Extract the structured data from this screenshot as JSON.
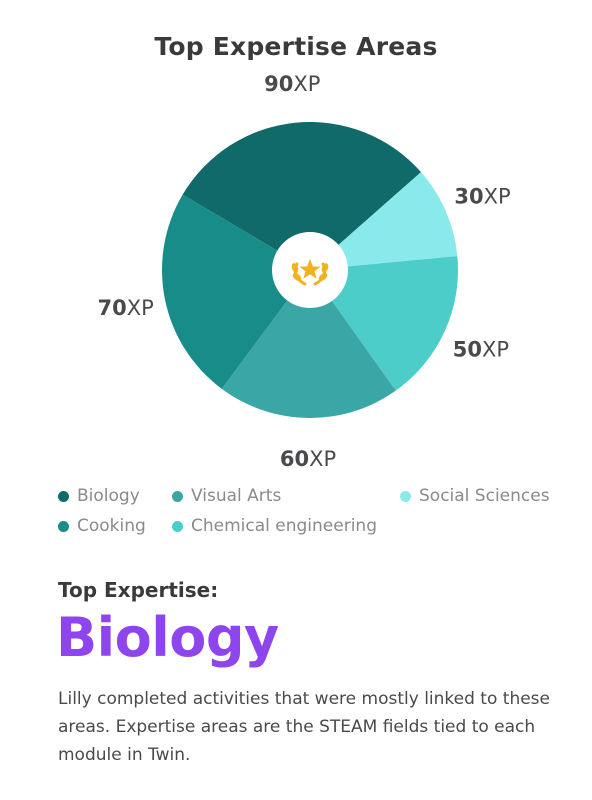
{
  "chart_data": {
    "type": "pie",
    "title": "Top Expertise Areas",
    "unit": "XP",
    "slices": [
      {
        "label": "Biology",
        "value": 90,
        "color": "#0f6a69"
      },
      {
        "label": "Social Sciences",
        "value": 30,
        "color": "#8ae9ea"
      },
      {
        "label": "Chemical engineering",
        "value": 50,
        "color": "#4ccdca"
      },
      {
        "label": "Visual Arts",
        "value": 60,
        "color": "#3aa6a6"
      },
      {
        "label": "Cooking",
        "value": 70,
        "color": "#188c88"
      }
    ],
    "legend": [
      {
        "label": "Biology",
        "color": "#0f6a69"
      },
      {
        "label": "Visual Arts",
        "color": "#3aa6a6"
      },
      {
        "label": "Social Sciences",
        "color": "#8ae9ea"
      },
      {
        "label": "Cooking",
        "color": "#188c88"
      },
      {
        "label": "Chemical engineering",
        "color": "#4ccdca"
      }
    ],
    "center_icon": "laurel-star-icon",
    "center_icon_color": "#f0b21f"
  },
  "summary": {
    "heading": "Top Expertise:",
    "value": "Biology",
    "description": "Lilly completed activities that were mostly linked to these areas. Expertise areas are the STEAM fields tied to each module in Twin."
  }
}
